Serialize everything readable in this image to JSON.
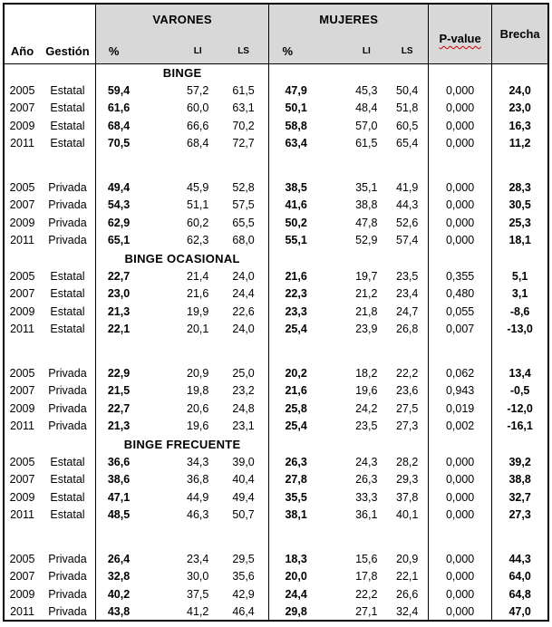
{
  "header": {
    "ano": "Año",
    "gestion": "Gestión",
    "varones": "VARONES",
    "mujeres": "MUJERES",
    "pct": "%",
    "li": "LI",
    "ls": "LS",
    "p_value": "P-value",
    "brecha": "Brecha"
  },
  "colors": {
    "header_bg": "#d8d8d8",
    "border": "#000000",
    "spellcheck_underline": "#cc0000"
  },
  "rows": [
    {
      "type": "section",
      "label": "BINGE"
    },
    {
      "type": "data",
      "ano": "2005",
      "gestion": "Estatal",
      "v": [
        "59,4",
        "57,2",
        "61,5"
      ],
      "m": [
        "47,9",
        "45,3",
        "50,4"
      ],
      "p": "0,000",
      "brecha": "24,0"
    },
    {
      "type": "data",
      "ano": "2007",
      "gestion": "Estatal",
      "v": [
        "61,6",
        "60,0",
        "63,1"
      ],
      "m": [
        "50,1",
        "48,4",
        "51,8"
      ],
      "p": "0,000",
      "brecha": "23,0"
    },
    {
      "type": "data",
      "ano": "2009",
      "gestion": "Estatal",
      "v": [
        "68,4",
        "66,6",
        "70,2"
      ],
      "m": [
        "58,8",
        "57,0",
        "60,5"
      ],
      "p": "0,000",
      "brecha": "16,3"
    },
    {
      "type": "data",
      "ano": "2011",
      "gestion": "Estatal",
      "v": [
        "70,5",
        "68,4",
        "72,7"
      ],
      "m": [
        "63,4",
        "61,5",
        "65,4"
      ],
      "p": "0,000",
      "brecha": "11,2"
    },
    {
      "type": "spacer"
    },
    {
      "type": "data",
      "ano": "2005",
      "gestion": "Privada",
      "v": [
        "49,4",
        "45,9",
        "52,8"
      ],
      "m": [
        "38,5",
        "35,1",
        "41,9"
      ],
      "p": "0,000",
      "brecha": "28,3"
    },
    {
      "type": "data",
      "ano": "2007",
      "gestion": "Privada",
      "v": [
        "54,3",
        "51,1",
        "57,5"
      ],
      "m": [
        "41,6",
        "38,8",
        "44,3"
      ],
      "p": "0,000",
      "brecha": "30,5"
    },
    {
      "type": "data",
      "ano": "2009",
      "gestion": "Privada",
      "v": [
        "62,9",
        "60,2",
        "65,5"
      ],
      "m": [
        "50,2",
        "47,8",
        "52,6"
      ],
      "p": "0,000",
      "brecha": "25,3"
    },
    {
      "type": "data",
      "ano": "2011",
      "gestion": "Privada",
      "v": [
        "65,1",
        "62,3",
        "68,0"
      ],
      "m": [
        "55,1",
        "52,9",
        "57,4"
      ],
      "p": "0,000",
      "brecha": "18,1"
    },
    {
      "type": "section",
      "label": "BINGE OCASIONAL"
    },
    {
      "type": "data",
      "ano": "2005",
      "gestion": "Estatal",
      "v": [
        "22,7",
        "21,4",
        "24,0"
      ],
      "m": [
        "21,6",
        "19,7",
        "23,5"
      ],
      "p": "0,355",
      "brecha": "5,1"
    },
    {
      "type": "data",
      "ano": "2007",
      "gestion": "Estatal",
      "v": [
        "23,0",
        "21,6",
        "24,4"
      ],
      "m": [
        "22,3",
        "21,2",
        "23,4"
      ],
      "p": "0,480",
      "brecha": "3,1"
    },
    {
      "type": "data",
      "ano": "2009",
      "gestion": "Estatal",
      "v": [
        "21,3",
        "19,9",
        "22,6"
      ],
      "m": [
        "23,3",
        "21,8",
        "24,7"
      ],
      "p": "0,055",
      "brecha": "-8,6"
    },
    {
      "type": "data",
      "ano": "2011",
      "gestion": "Estatal",
      "v": [
        "22,1",
        "20,1",
        "24,0"
      ],
      "m": [
        "25,4",
        "23,9",
        "26,8"
      ],
      "p": "0,007",
      "brecha": "-13,0"
    },
    {
      "type": "spacer"
    },
    {
      "type": "data",
      "ano": "2005",
      "gestion": "Privada",
      "v": [
        "22,9",
        "20,9",
        "25,0"
      ],
      "m": [
        "20,2",
        "18,2",
        "22,2"
      ],
      "p": "0,062",
      "brecha": "13,4"
    },
    {
      "type": "data",
      "ano": "2007",
      "gestion": "Privada",
      "v": [
        "21,5",
        "19,8",
        "23,2"
      ],
      "m": [
        "21,6",
        "19,6",
        "23,6"
      ],
      "p": "0,943",
      "brecha": "-0,5"
    },
    {
      "type": "data",
      "ano": "2009",
      "gestion": "Privada",
      "v": [
        "22,7",
        "20,6",
        "24,8"
      ],
      "m": [
        "25,8",
        "24,2",
        "27,5"
      ],
      "p": "0,019",
      "brecha": "-12,0"
    },
    {
      "type": "data",
      "ano": "2011",
      "gestion": "Privada",
      "v": [
        "21,3",
        "19,6",
        "23,1"
      ],
      "m": [
        "25,4",
        "23,5",
        "27,3"
      ],
      "p": "0,002",
      "brecha": "-16,1"
    },
    {
      "type": "section",
      "label": "BINGE FRECUENTE"
    },
    {
      "type": "data",
      "ano": "2005",
      "gestion": "Estatal",
      "v": [
        "36,6",
        "34,3",
        "39,0"
      ],
      "m": [
        "26,3",
        "24,3",
        "28,2"
      ],
      "p": "0,000",
      "brecha": "39,2"
    },
    {
      "type": "data",
      "ano": "2007",
      "gestion": "Estatal",
      "v": [
        "38,6",
        "36,8",
        "40,4"
      ],
      "m": [
        "27,8",
        "26,3",
        "29,3"
      ],
      "p": "0,000",
      "brecha": "38,8"
    },
    {
      "type": "data",
      "ano": "2009",
      "gestion": "Estatal",
      "v": [
        "47,1",
        "44,9",
        "49,4"
      ],
      "m": [
        "35,5",
        "33,3",
        "37,8"
      ],
      "p": "0,000",
      "brecha": "32,7"
    },
    {
      "type": "data",
      "ano": "2011",
      "gestion": "Estatal",
      "v": [
        "48,5",
        "46,3",
        "50,7"
      ],
      "m": [
        "38,1",
        "36,1",
        "40,1"
      ],
      "p": "0,000",
      "brecha": "27,3"
    },
    {
      "type": "spacer"
    },
    {
      "type": "data",
      "ano": "2005",
      "gestion": "Privada",
      "v": [
        "26,4",
        "23,4",
        "29,5"
      ],
      "m": [
        "18,3",
        "15,6",
        "20,9"
      ],
      "p": "0,000",
      "brecha": "44,3"
    },
    {
      "type": "data",
      "ano": "2007",
      "gestion": "Privada",
      "v": [
        "32,8",
        "30,0",
        "35,6"
      ],
      "m": [
        "20,0",
        "17,8",
        "22,1"
      ],
      "p": "0,000",
      "brecha": "64,0"
    },
    {
      "type": "data",
      "ano": "2009",
      "gestion": "Privada",
      "v": [
        "40,2",
        "37,5",
        "42,9"
      ],
      "m": [
        "24,4",
        "22,2",
        "26,6"
      ],
      "p": "0,000",
      "brecha": "64,8"
    },
    {
      "type": "data",
      "ano": "2011",
      "gestion": "Privada",
      "v": [
        "43,8",
        "41,2",
        "46,4"
      ],
      "m": [
        "29,8",
        "27,1",
        "32,4"
      ],
      "p": "0,000",
      "brecha": "47,0"
    }
  ]
}
